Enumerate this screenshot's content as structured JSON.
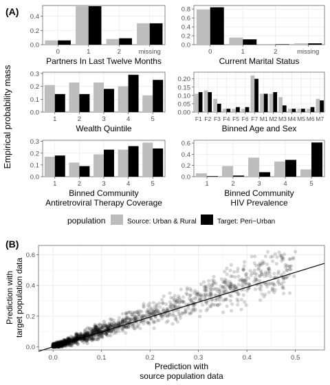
{
  "figure": {
    "panel_a_label": "(A)",
    "panel_b_label": "(B)",
    "y_axis_label": "Empirical probability mass",
    "legend": {
      "title": "population",
      "items": [
        {
          "label": "Source: Urban & Rural",
          "color": "#bdbdbd"
        },
        {
          "label": "Target: Peri−Urban",
          "color": "#000000"
        }
      ]
    }
  },
  "chart_data": [
    {
      "type": "bar",
      "xlabel": "Partners In Last Twelve Months",
      "categories": [
        "0",
        "1",
        "2",
        "missing"
      ],
      "ylim": [
        0,
        0.55
      ],
      "yticks": [
        "0.0",
        "0.2",
        "0.4"
      ],
      "ytick_values": [
        0,
        0.2,
        0.4
      ],
      "series": [
        {
          "name": "Source: Urban & Rural",
          "values": [
            0.06,
            0.54,
            0.08,
            0.3
          ]
        },
        {
          "name": "Target: Peri−Urban",
          "values": [
            0.06,
            0.54,
            0.09,
            0.3
          ]
        }
      ]
    },
    {
      "type": "bar",
      "xlabel": "Current Marital Status",
      "categories": [
        "0",
        "1",
        "2",
        "missing"
      ],
      "ylim": [
        0,
        0.88
      ],
      "yticks": [
        "0.0",
        "0.2",
        "0.4",
        "0.6",
        "0.8"
      ],
      "ytick_values": [
        0,
        0.2,
        0.4,
        0.6,
        0.8
      ],
      "series": [
        {
          "name": "Source: Urban & Rural",
          "values": [
            0.79,
            0.16,
            0.015,
            0.03
          ]
        },
        {
          "name": "Target: Peri−Urban",
          "values": [
            0.84,
            0.12,
            0.01,
            0.03
          ]
        }
      ]
    },
    {
      "type": "bar",
      "xlabel": "Wealth Quintile",
      "categories": [
        "1",
        "2",
        "3",
        "4",
        "5"
      ],
      "ylim": [
        0,
        0.31
      ],
      "yticks": [
        "0.0",
        "0.1",
        "0.2",
        "0.3"
      ],
      "ytick_values": [
        0,
        0.1,
        0.2,
        0.3
      ],
      "series": [
        {
          "name": "Source: Urban & Rural",
          "values": [
            0.21,
            0.23,
            0.23,
            0.2,
            0.13
          ]
        },
        {
          "name": "Target: Peri−Urban",
          "values": [
            0.14,
            0.14,
            0.18,
            0.29,
            0.25
          ]
        }
      ]
    },
    {
      "type": "bar",
      "xlabel": "Binned Age and Sex",
      "categories": [
        "F1",
        "F2",
        "F3",
        "F4",
        "F5",
        "F6",
        "F7",
        "M1",
        "M2",
        "M3",
        "M4",
        "M5",
        "M6",
        "M7"
      ],
      "ylim": [
        0,
        0.24
      ],
      "yticks": [
        "0.00",
        "0.05",
        "0.10",
        "0.15",
        "0.20"
      ],
      "ytick_values": [
        0,
        0.05,
        0.1,
        0.15,
        0.2
      ],
      "series": [
        {
          "name": "Source: Urban & Rural",
          "values": [
            0.11,
            0.13,
            0.08,
            0.02,
            0.02,
            0.02,
            0.22,
            0.11,
            0.11,
            0.09,
            0.02,
            0.02,
            0.02,
            0.08
          ]
        },
        {
          "name": "Target: Peri−Urban",
          "values": [
            0.12,
            0.12,
            0.05,
            0.02,
            0.03,
            0.03,
            0.2,
            0.11,
            0.12,
            0.04,
            0.02,
            0.02,
            0.03,
            0.07
          ]
        }
      ]
    },
    {
      "type": "bar",
      "xlabel": "Binned Community\nAntiretroviral Therapy Coverage",
      "categories": [
        "1",
        "2",
        "3",
        "4",
        "5"
      ],
      "ylim": [
        0,
        0.31
      ],
      "yticks": [
        "0.0",
        "0.1",
        "0.2",
        "0.3"
      ],
      "ytick_values": [
        0,
        0.1,
        0.2,
        0.3
      ],
      "series": [
        {
          "name": "Source: Urban & Rural",
          "values": [
            0.17,
            0.12,
            0.19,
            0.23,
            0.29
          ]
        },
        {
          "name": "Target: Peri−Urban",
          "values": [
            0.18,
            0.09,
            0.23,
            0.26,
            0.24
          ]
        }
      ]
    },
    {
      "type": "bar",
      "xlabel": "Binned Community\nHIV Prevalence",
      "categories": [
        "1",
        "2",
        "3",
        "4",
        "5"
      ],
      "ylim": [
        0,
        0.65
      ],
      "yticks": [
        "0.0",
        "0.2",
        "0.4",
        "0.6"
      ],
      "ytick_values": [
        0,
        0.2,
        0.4,
        0.6
      ],
      "series": [
        {
          "name": "Source: Urban & Rural",
          "values": [
            0.06,
            0.19,
            0.34,
            0.27,
            0.13
          ]
        },
        {
          "name": "Target: Peri−Urban",
          "values": [
            0.01,
            0.02,
            0.08,
            0.3,
            0.61
          ]
        }
      ]
    },
    {
      "type": "scatter",
      "xlabel": "Prediction with\nsource population data",
      "ylabel": "Prediction with\ntarget population data",
      "xlim": [
        -0.03,
        0.56
      ],
      "ylim": [
        -0.02,
        0.66
      ],
      "xticks": [
        "0.0",
        "0.1",
        "0.2",
        "0.3",
        "0.4",
        "0.5"
      ],
      "xtick_values": [
        0,
        0.1,
        0.2,
        0.3,
        0.4,
        0.5
      ],
      "yticks": [
        "0.0",
        "0.2",
        "0.4",
        "0.6"
      ],
      "ytick_values": [
        0,
        0.2,
        0.4,
        0.6
      ],
      "grid": true,
      "fit_line": {
        "intercept": 0.0,
        "slope": 0.97
      },
      "points_note_count": 1500
    }
  ]
}
